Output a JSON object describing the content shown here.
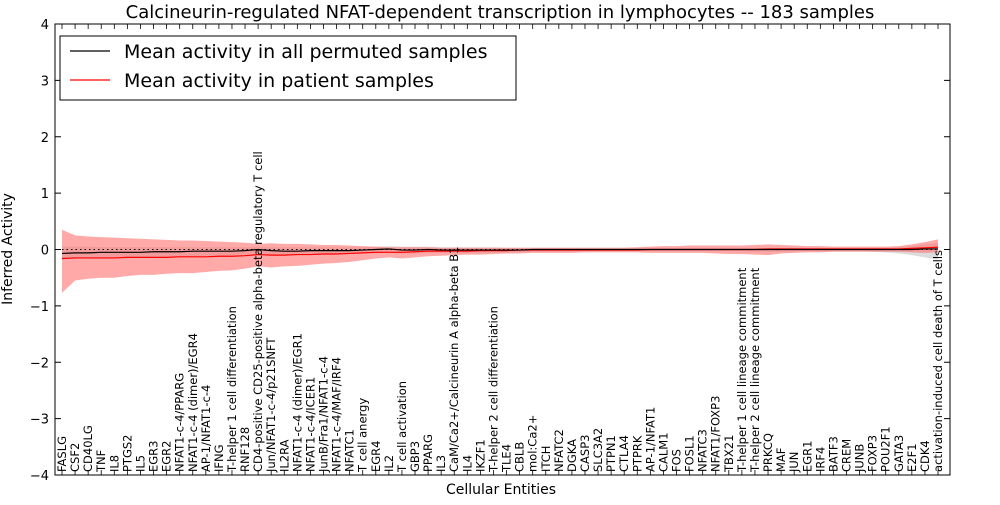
{
  "chart_data": {
    "type": "line",
    "title": "Calcineurin-regulated NFAT-dependent transcription in lymphocytes -- 183 samples",
    "xlabel": "Cellular Entities",
    "ylabel": "Inferred Activity",
    "ylim": [
      -4,
      4
    ],
    "yticks": [
      -4,
      -3,
      -2,
      -1,
      0,
      1,
      2,
      3,
      4
    ],
    "grid": false,
    "legend_position": "upper-left",
    "categories": [
      "FASLG",
      "CSF2",
      "CD40LG",
      "TNF",
      "IL8",
      "PTGS2",
      "IL5",
      "EGR3",
      "EGR2",
      "NFAT1-c-4/PPARG",
      "NFAT1-c-4 (dimer)/EGR4",
      "AP-1/NFAT1-c-4",
      "IFNG",
      "T-helper 1 cell differentiation",
      "RNF128",
      "CD4-positive CD25-positive alpha-beta regulatory T cell",
      "Jun/NFAT1-c-4/p21SNFT",
      "IL2RA",
      "NFAT1-c-4 (dimer)/EGR1",
      "NFAT1-c-4/ICER1",
      "JunB/Fra1/NFAT1-c-4",
      "NFAT1-c-4/MAF/IRF4",
      "NFATC1",
      "T cell anergy",
      "EGR4",
      "IL2",
      "T cell activation",
      "GBP3",
      "PPARG",
      "IL3",
      "CaM/Ca2+/Calcineurin A alpha-beta B1",
      "IL4",
      "IKZF1",
      "T-helper 2 cell differentiation",
      "TLE4",
      "CBLB",
      "mol:Ca2+",
      "ITCH",
      "NFATC2",
      "DGKA",
      "CASP3",
      "SLC3A2",
      "PTPN1",
      "CTLA4",
      "PTPRK",
      "AP-1/NFAT1",
      "CALM1",
      "FOS",
      "FOSL1",
      "NFATC3",
      "NFAT1/FOXP3",
      "TBX21",
      "T-helper 1 cell lineage commitment",
      "T-helper 2 cell lineage commitment",
      "PRKCQ",
      "MAF",
      "JUN",
      "EGR1",
      "IRF4",
      "BATF3",
      "CREM",
      "JUNB",
      "FOXP3",
      "POU2F1",
      "GATA3",
      "E2F1",
      "CDK4",
      "activation-induced cell death of T cells"
    ],
    "series": [
      {
        "name": "Mean activity in all permuted samples",
        "color": "#000000",
        "values": [
          -0.07,
          -0.06,
          -0.06,
          -0.05,
          -0.05,
          -0.05,
          -0.05,
          -0.04,
          -0.04,
          -0.04,
          -0.03,
          -0.03,
          -0.03,
          -0.03,
          -0.02,
          0.0,
          -0.02,
          -0.03,
          -0.03,
          -0.02,
          -0.02,
          -0.02,
          -0.02,
          -0.01,
          0.0,
          0.01,
          -0.01,
          -0.01,
          0.0,
          -0.01,
          -0.01,
          -0.01,
          -0.01,
          -0.01,
          -0.01,
          -0.01,
          0.0,
          0.0,
          0.0,
          0.0,
          0.0,
          0.0,
          0.0,
          0.0,
          0.0,
          0.0,
          0.0,
          0.0,
          0.0,
          0.0,
          0.0,
          0.0,
          0.0,
          0.0,
          0.0,
          0.0,
          0.0,
          0.0,
          0.0,
          0.0,
          0.0,
          0.0,
          0.0,
          0.0,
          0.0,
          0.0,
          0.01,
          0.01
        ],
        "band_lower": [
          -0.18,
          -0.16,
          -0.16,
          -0.15,
          -0.15,
          -0.14,
          -0.14,
          -0.13,
          -0.13,
          -0.12,
          -0.12,
          -0.11,
          -0.11,
          -0.1,
          -0.09,
          -0.07,
          -0.09,
          -0.09,
          -0.09,
          -0.08,
          -0.08,
          -0.08,
          -0.08,
          -0.07,
          -0.06,
          -0.05,
          -0.07,
          -0.07,
          -0.06,
          -0.06,
          -0.06,
          -0.06,
          -0.06,
          -0.05,
          -0.05,
          -0.05,
          -0.04,
          -0.04,
          -0.04,
          -0.04,
          -0.03,
          -0.03,
          -0.03,
          -0.03,
          -0.03,
          -0.03,
          -0.03,
          -0.03,
          -0.03,
          -0.03,
          -0.03,
          -0.03,
          -0.03,
          -0.04,
          -0.04,
          -0.04,
          -0.03,
          -0.03,
          -0.03,
          -0.03,
          -0.03,
          -0.03,
          -0.04,
          -0.05,
          -0.07,
          -0.1,
          -0.14,
          -0.18
        ],
        "band_upper": [
          0.05,
          0.05,
          0.05,
          0.04,
          0.04,
          0.04,
          0.04,
          0.04,
          0.04,
          0.04,
          0.04,
          0.04,
          0.04,
          0.04,
          0.04,
          0.05,
          0.04,
          0.04,
          0.04,
          0.04,
          0.04,
          0.04,
          0.04,
          0.04,
          0.05,
          0.06,
          0.05,
          0.05,
          0.05,
          0.04,
          0.04,
          0.04,
          0.04,
          0.04,
          0.03,
          0.03,
          0.03,
          0.03,
          0.03,
          0.03,
          0.03,
          0.03,
          0.03,
          0.03,
          0.03,
          0.03,
          0.03,
          0.03,
          0.03,
          0.03,
          0.03,
          0.03,
          0.03,
          0.03,
          0.03,
          0.03,
          0.03,
          0.03,
          0.03,
          0.03,
          0.03,
          0.03,
          0.03,
          0.03,
          0.04,
          0.06,
          0.09,
          0.12
        ]
      },
      {
        "name": "Mean activity in patient samples",
        "color": "#ff0000",
        "band_color": "#ff7070",
        "values": [
          -0.16,
          -0.15,
          -0.15,
          -0.15,
          -0.15,
          -0.14,
          -0.14,
          -0.14,
          -0.14,
          -0.13,
          -0.13,
          -0.13,
          -0.12,
          -0.12,
          -0.11,
          -0.09,
          -0.1,
          -0.1,
          -0.09,
          -0.09,
          -0.08,
          -0.08,
          -0.07,
          -0.06,
          -0.05,
          -0.05,
          -0.05,
          -0.04,
          -0.03,
          -0.03,
          -0.03,
          -0.03,
          -0.02,
          -0.02,
          -0.02,
          -0.01,
          -0.01,
          -0.01,
          -0.01,
          -0.01,
          -0.01,
          -0.01,
          -0.01,
          -0.01,
          -0.01,
          0.0,
          0.0,
          0.0,
          0.0,
          0.0,
          0.0,
          0.0,
          0.0,
          0.0,
          0.01,
          0.01,
          0.01,
          0.01,
          0.01,
          0.01,
          0.01,
          0.01,
          0.01,
          0.01,
          0.01,
          0.02,
          0.03,
          0.04
        ],
        "band_lower": [
          -0.77,
          -0.55,
          -0.52,
          -0.5,
          -0.5,
          -0.47,
          -0.45,
          -0.45,
          -0.43,
          -0.42,
          -0.42,
          -0.4,
          -0.38,
          -0.37,
          -0.34,
          -0.3,
          -0.32,
          -0.3,
          -0.29,
          -0.27,
          -0.25,
          -0.24,
          -0.22,
          -0.19,
          -0.16,
          -0.14,
          -0.16,
          -0.14,
          -0.12,
          -0.11,
          -0.1,
          -0.09,
          -0.09,
          -0.08,
          -0.07,
          -0.07,
          -0.06,
          -0.06,
          -0.06,
          -0.06,
          -0.05,
          -0.05,
          -0.05,
          -0.05,
          -0.05,
          -0.06,
          -0.06,
          -0.06,
          -0.06,
          -0.06,
          -0.07,
          -0.08,
          -0.08,
          -0.09,
          -0.1,
          -0.07,
          -0.06,
          -0.05,
          -0.05,
          -0.04,
          -0.04,
          -0.04,
          -0.04,
          -0.04,
          -0.04,
          -0.05,
          -0.06,
          -0.05
        ],
        "band_upper": [
          0.35,
          0.25,
          0.23,
          0.22,
          0.21,
          0.2,
          0.19,
          0.18,
          0.17,
          0.16,
          0.16,
          0.15,
          0.14,
          0.13,
          0.12,
          0.1,
          0.11,
          0.1,
          0.1,
          0.09,
          0.08,
          0.08,
          0.07,
          0.06,
          0.05,
          0.04,
          0.04,
          0.04,
          0.04,
          0.03,
          0.03,
          0.03,
          0.03,
          0.03,
          0.03,
          0.03,
          0.03,
          0.03,
          0.03,
          0.03,
          0.03,
          0.03,
          0.03,
          0.03,
          0.04,
          0.05,
          0.06,
          0.06,
          0.07,
          0.07,
          0.07,
          0.07,
          0.07,
          0.08,
          0.09,
          0.08,
          0.07,
          0.06,
          0.06,
          0.05,
          0.05,
          0.05,
          0.05,
          0.05,
          0.06,
          0.09,
          0.13,
          0.18
        ]
      }
    ]
  }
}
